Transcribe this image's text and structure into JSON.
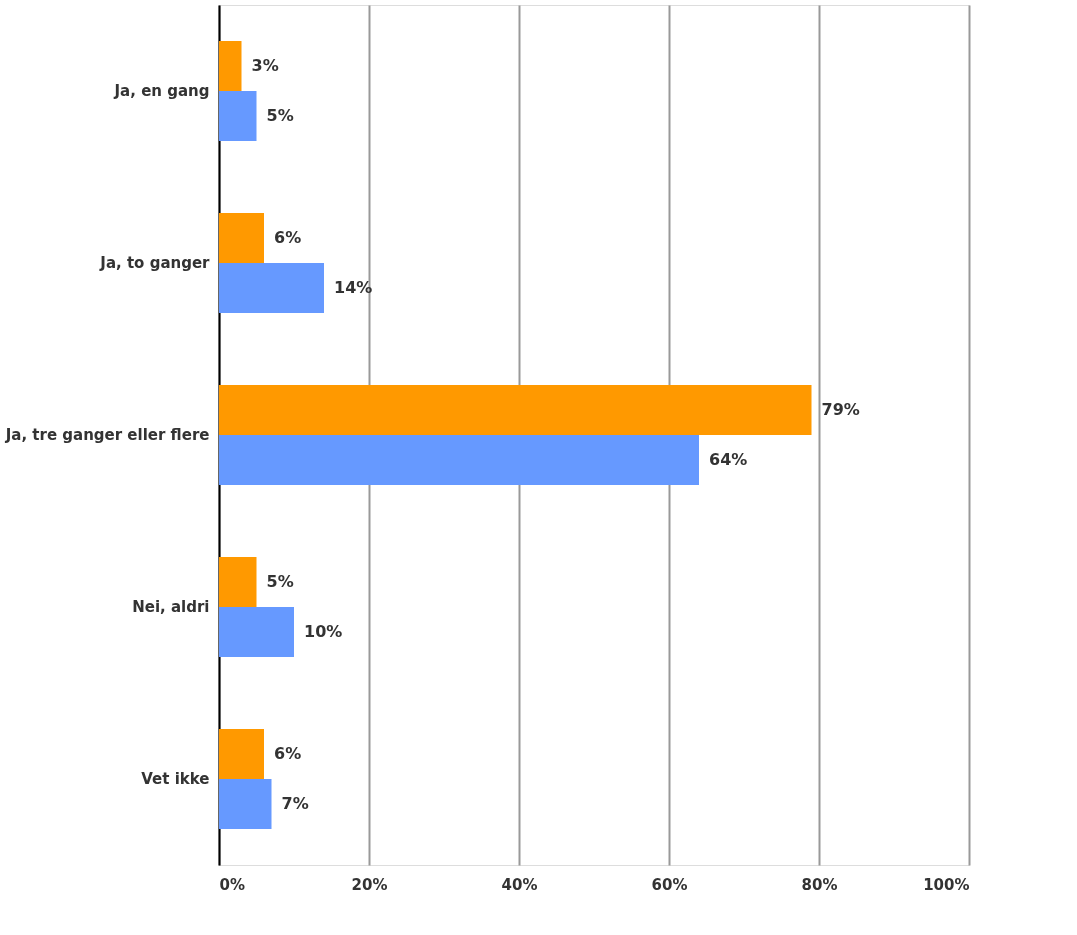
{
  "chart_data": {
    "type": "bar",
    "orientation": "horizontal",
    "categories": [
      "Ja, en gang",
      "Ja, to ganger",
      "Ja, tre ganger eller flere",
      "Nei, aldri",
      "Vet ikke"
    ],
    "series": [
      {
        "color": "#ff9900",
        "values": [
          3,
          6,
          79,
          5,
          6
        ],
        "value_labels": [
          "3%",
          "6%",
          "79%",
          "5%",
          "6%"
        ]
      },
      {
        "color": "#6699ff",
        "values": [
          5,
          14,
          64,
          10,
          7
        ],
        "value_labels": [
          "5%",
          "14%",
          "64%",
          "10%",
          "7%"
        ]
      }
    ],
    "xlim": [
      0,
      100
    ],
    "xticks": [
      {
        "value": 0,
        "label": "0%"
      },
      {
        "value": 20,
        "label": "20%"
      },
      {
        "value": 40,
        "label": "40%"
      },
      {
        "value": 60,
        "label": "60%"
      },
      {
        "value": 80,
        "label": "80%"
      },
      {
        "value": 100,
        "label": "100%"
      }
    ],
    "grid": "x"
  }
}
